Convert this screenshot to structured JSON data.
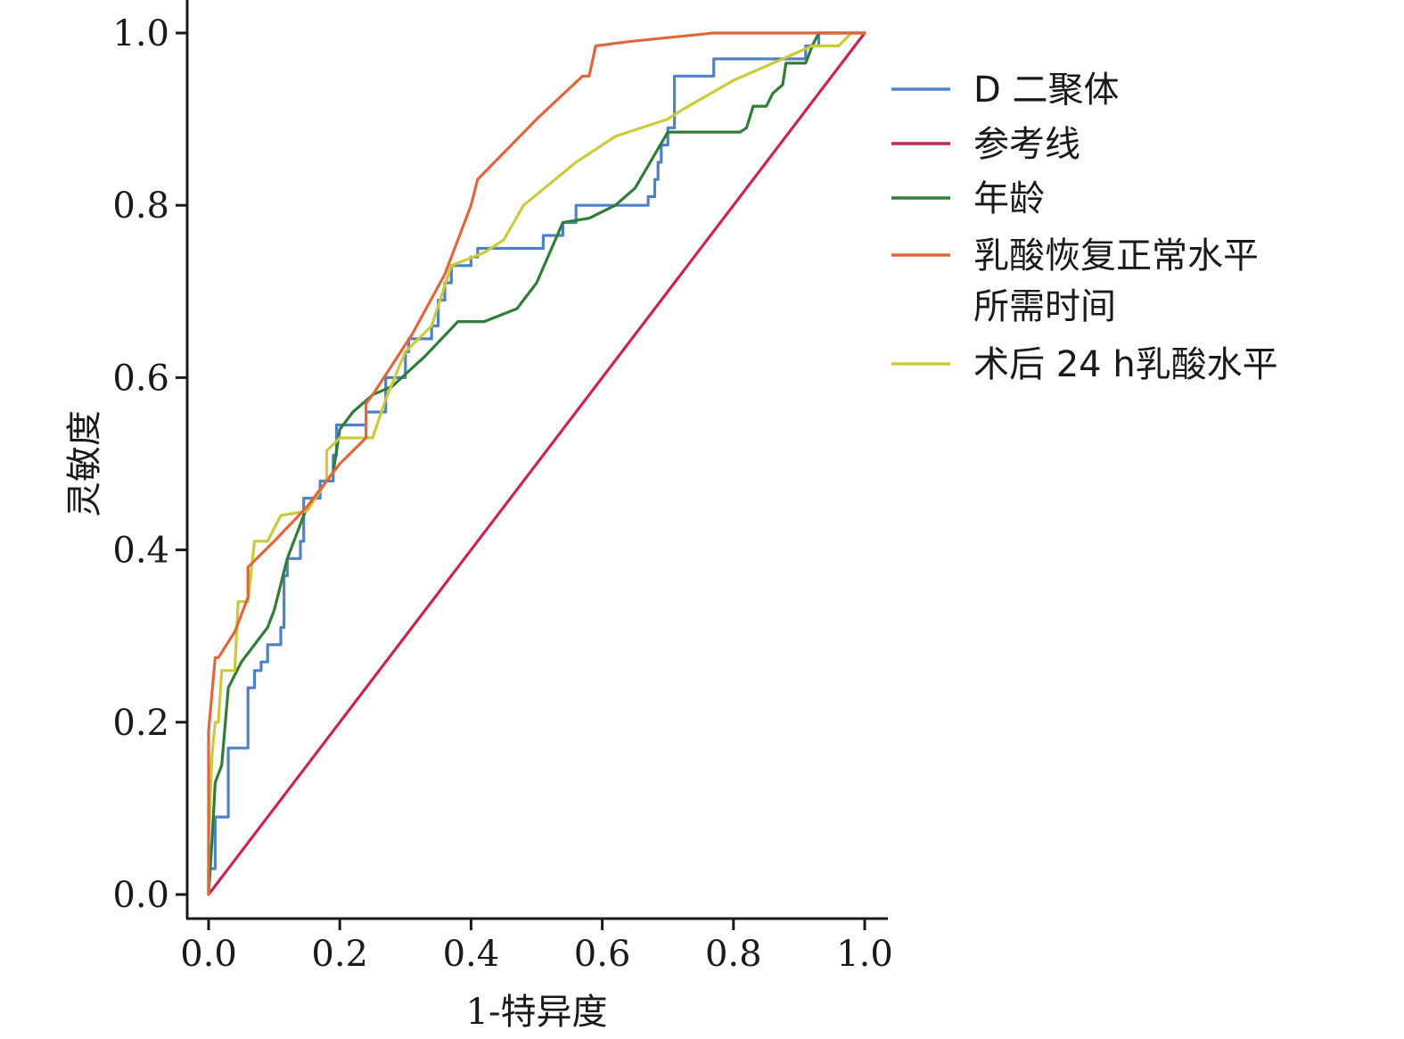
{
  "chart_data": {
    "type": "line",
    "title": "",
    "xlabel": "1-特异度",
    "ylabel": "灵敏度",
    "xlim": [
      0.0,
      1.0
    ],
    "ylim": [
      0.0,
      1.0
    ],
    "x_ticks": [
      "0.0",
      "0.2",
      "0.4",
      "0.6",
      "0.8",
      "1.0"
    ],
    "y_ticks": [
      "0.0",
      "0.2",
      "0.4",
      "0.6",
      "0.8",
      "1.0"
    ],
    "grid": false,
    "legend_position": "right",
    "series": [
      {
        "name": "D 二聚体",
        "color": "#4f81c7",
        "points": [
          [
            0,
            0
          ],
          [
            0,
            0.03
          ],
          [
            0.01,
            0.03
          ],
          [
            0.01,
            0.09
          ],
          [
            0.03,
            0.09
          ],
          [
            0.03,
            0.17
          ],
          [
            0.06,
            0.17
          ],
          [
            0.06,
            0.24
          ],
          [
            0.07,
            0.24
          ],
          [
            0.07,
            0.26
          ],
          [
            0.08,
            0.26
          ],
          [
            0.08,
            0.27
          ],
          [
            0.09,
            0.27
          ],
          [
            0.09,
            0.29
          ],
          [
            0.11,
            0.29
          ],
          [
            0.11,
            0.31
          ],
          [
            0.115,
            0.31
          ],
          [
            0.115,
            0.37
          ],
          [
            0.12,
            0.37
          ],
          [
            0.12,
            0.39
          ],
          [
            0.14,
            0.39
          ],
          [
            0.14,
            0.41
          ],
          [
            0.145,
            0.41
          ],
          [
            0.145,
            0.46
          ],
          [
            0.17,
            0.46
          ],
          [
            0.17,
            0.48
          ],
          [
            0.19,
            0.48
          ],
          [
            0.19,
            0.51
          ],
          [
            0.195,
            0.51
          ],
          [
            0.195,
            0.545
          ],
          [
            0.24,
            0.545
          ],
          [
            0.24,
            0.56
          ],
          [
            0.26,
            0.56
          ],
          [
            0.26,
            0.56
          ],
          [
            0.27,
            0.56
          ],
          [
            0.27,
            0.6
          ],
          [
            0.3,
            0.6
          ],
          [
            0.3,
            0.63
          ],
          [
            0.305,
            0.63
          ],
          [
            0.305,
            0.645
          ],
          [
            0.34,
            0.645
          ],
          [
            0.34,
            0.66
          ],
          [
            0.35,
            0.66
          ],
          [
            0.35,
            0.69
          ],
          [
            0.36,
            0.69
          ],
          [
            0.36,
            0.71
          ],
          [
            0.37,
            0.71
          ],
          [
            0.37,
            0.73
          ],
          [
            0.4,
            0.73
          ],
          [
            0.4,
            0.74
          ],
          [
            0.41,
            0.74
          ],
          [
            0.41,
            0.75
          ],
          [
            0.51,
            0.75
          ],
          [
            0.51,
            0.765
          ],
          [
            0.54,
            0.765
          ],
          [
            0.54,
            0.78
          ],
          [
            0.56,
            0.78
          ],
          [
            0.56,
            0.8
          ],
          [
            0.66,
            0.8
          ],
          [
            0.66,
            0.8
          ],
          [
            0.67,
            0.8
          ],
          [
            0.67,
            0.81
          ],
          [
            0.68,
            0.81
          ],
          [
            0.68,
            0.83
          ],
          [
            0.685,
            0.83
          ],
          [
            0.685,
            0.85
          ],
          [
            0.69,
            0.85
          ],
          [
            0.69,
            0.87
          ],
          [
            0.7,
            0.87
          ],
          [
            0.7,
            0.89
          ],
          [
            0.71,
            0.89
          ],
          [
            0.71,
            0.95
          ],
          [
            0.77,
            0.95
          ],
          [
            0.77,
            0.97
          ],
          [
            0.91,
            0.97
          ],
          [
            0.91,
            0.985
          ],
          [
            0.93,
            0.985
          ],
          [
            0.93,
            1.0
          ],
          [
            1.0,
            1.0
          ]
        ]
      },
      {
        "name": "参考线",
        "color": "#c8264f",
        "points": [
          [
            0,
            0
          ],
          [
            1.0,
            1.0
          ]
        ]
      },
      {
        "name": "年龄",
        "color": "#2f7d38",
        "points": [
          [
            0,
            0
          ],
          [
            0.005,
            0.06
          ],
          [
            0.01,
            0.13
          ],
          [
            0.02,
            0.15
          ],
          [
            0.03,
            0.24
          ],
          [
            0.05,
            0.27
          ],
          [
            0.07,
            0.29
          ],
          [
            0.09,
            0.31
          ],
          [
            0.1,
            0.33
          ],
          [
            0.12,
            0.39
          ],
          [
            0.15,
            0.45
          ],
          [
            0.17,
            0.47
          ],
          [
            0.19,
            0.49
          ],
          [
            0.2,
            0.54
          ],
          [
            0.22,
            0.56
          ],
          [
            0.25,
            0.58
          ],
          [
            0.28,
            0.59
          ],
          [
            0.33,
            0.625
          ],
          [
            0.38,
            0.665
          ],
          [
            0.42,
            0.665
          ],
          [
            0.47,
            0.68
          ],
          [
            0.5,
            0.71
          ],
          [
            0.54,
            0.78
          ],
          [
            0.58,
            0.785
          ],
          [
            0.62,
            0.8
          ],
          [
            0.65,
            0.82
          ],
          [
            0.7,
            0.885
          ],
          [
            0.71,
            0.885
          ],
          [
            0.8,
            0.885
          ],
          [
            0.81,
            0.885
          ],
          [
            0.82,
            0.89
          ],
          [
            0.83,
            0.915
          ],
          [
            0.85,
            0.915
          ],
          [
            0.86,
            0.93
          ],
          [
            0.875,
            0.94
          ],
          [
            0.88,
            0.965
          ],
          [
            0.91,
            0.965
          ],
          [
            0.92,
            0.985
          ],
          [
            0.93,
            1.0
          ],
          [
            1.0,
            1.0
          ]
        ]
      },
      {
        "name": "乳酸恢复正常水平所需时间",
        "color": "#e0663e",
        "points": [
          [
            0,
            0
          ],
          [
            0,
            0.19
          ],
          [
            0.01,
            0.275
          ],
          [
            0.015,
            0.275
          ],
          [
            0.04,
            0.305
          ],
          [
            0.06,
            0.345
          ],
          [
            0.06,
            0.38
          ],
          [
            0.1,
            0.41
          ],
          [
            0.15,
            0.45
          ],
          [
            0.2,
            0.5
          ],
          [
            0.24,
            0.53
          ],
          [
            0.24,
            0.57
          ],
          [
            0.25,
            0.58
          ],
          [
            0.31,
            0.65
          ],
          [
            0.36,
            0.72
          ],
          [
            0.4,
            0.8
          ],
          [
            0.41,
            0.83
          ],
          [
            0.5,
            0.9
          ],
          [
            0.57,
            0.95
          ],
          [
            0.58,
            0.95
          ],
          [
            0.59,
            0.985
          ],
          [
            0.64,
            0.99
          ],
          [
            0.77,
            1.0
          ],
          [
            1.0,
            1.0
          ]
        ]
      },
      {
        "name": "术后 24 h乳酸水平",
        "color": "#c9cb3c",
        "points": [
          [
            0,
            0
          ],
          [
            0,
            0.06
          ],
          [
            0.005,
            0.16
          ],
          [
            0.01,
            0.2
          ],
          [
            0.015,
            0.2
          ],
          [
            0.02,
            0.26
          ],
          [
            0.04,
            0.26
          ],
          [
            0.045,
            0.34
          ],
          [
            0.06,
            0.34
          ],
          [
            0.07,
            0.41
          ],
          [
            0.09,
            0.41
          ],
          [
            0.11,
            0.44
          ],
          [
            0.15,
            0.445
          ],
          [
            0.18,
            0.48
          ],
          [
            0.18,
            0.515
          ],
          [
            0.2,
            0.53
          ],
          [
            0.24,
            0.53
          ],
          [
            0.25,
            0.53
          ],
          [
            0.27,
            0.575
          ],
          [
            0.3,
            0.63
          ],
          [
            0.34,
            0.66
          ],
          [
            0.37,
            0.73
          ],
          [
            0.42,
            0.745
          ],
          [
            0.45,
            0.76
          ],
          [
            0.48,
            0.8
          ],
          [
            0.56,
            0.85
          ],
          [
            0.62,
            0.88
          ],
          [
            0.7,
            0.9
          ],
          [
            0.72,
            0.91
          ],
          [
            0.8,
            0.945
          ],
          [
            0.86,
            0.965
          ],
          [
            0.92,
            0.985
          ],
          [
            0.96,
            0.985
          ],
          [
            0.98,
            1.0
          ],
          [
            1.0,
            1.0
          ]
        ]
      }
    ]
  }
}
